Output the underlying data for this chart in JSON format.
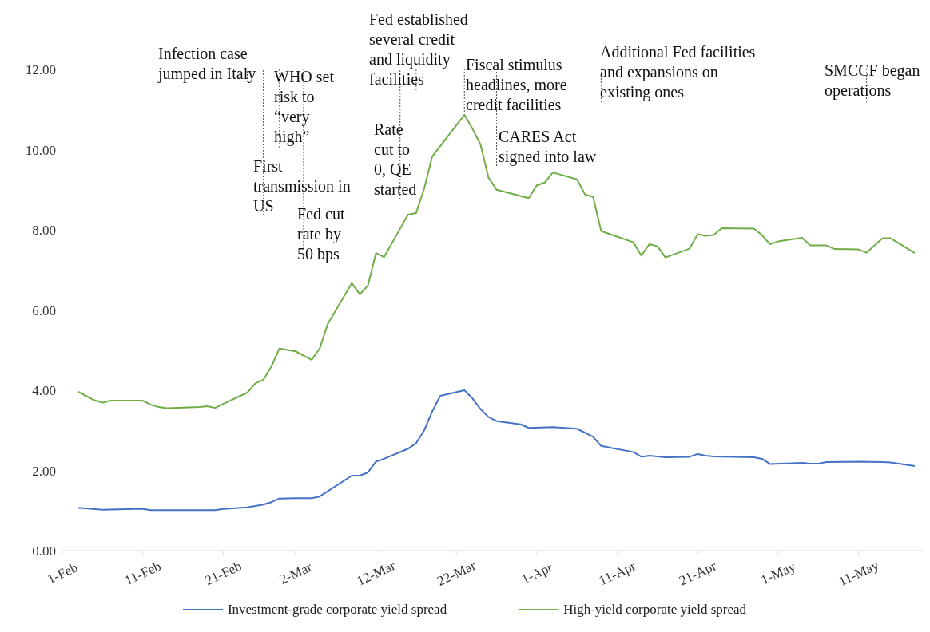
{
  "chart_data": {
    "type": "line",
    "xlim": [
      "--02-01",
      "--05-19"
    ],
    "xticks": [
      {
        "value": "--02-01",
        "label": "1-Feb"
      },
      {
        "value": "--02-11",
        "label": "11-Feb"
      },
      {
        "value": "--02-21",
        "label": "21-Feb"
      },
      {
        "value": "--03-02",
        "label": "2-Mar"
      },
      {
        "value": "--03-12",
        "label": "12-Mar"
      },
      {
        "value": "--03-22",
        "label": "22-Mar"
      },
      {
        "value": "--04-01",
        "label": "1-Apr"
      },
      {
        "value": "--04-11",
        "label": "11-Apr"
      },
      {
        "value": "--04-21",
        "label": "21-Apr"
      },
      {
        "value": "--05-01",
        "label": "1-May"
      },
      {
        "value": "--05-11",
        "label": "11-May"
      }
    ],
    "ylim": [
      0,
      12
    ],
    "yticks": [
      {
        "value": 0,
        "label": "0.00"
      },
      {
        "value": 2,
        "label": "2.00"
      },
      {
        "value": 4,
        "label": "4.00"
      },
      {
        "value": 6,
        "label": "6.00"
      },
      {
        "value": 8,
        "label": "8.00"
      },
      {
        "value": 10,
        "label": "10.00"
      },
      {
        "value": 12,
        "label": "12.00"
      }
    ],
    "grid": false,
    "legend": "bottom",
    "series": [
      {
        "name": "Investment-grade corporate yield spread",
        "color": "#4472c4",
        "x": [
          "--02-03",
          "--02-06",
          "--02-10",
          "--02-11",
          "--02-12",
          "--02-14",
          "--02-20",
          "--02-21",
          "--02-24",
          "--02-26",
          "--02-27",
          "--02-28",
          "--03-02",
          "--03-04",
          "--03-05",
          "--03-09",
          "--03-10",
          "--03-11",
          "--03-12",
          "--03-13",
          "--03-16",
          "--03-17",
          "--03-18",
          "--03-19",
          "--03-20",
          "--03-23",
          "--03-24",
          "--03-25",
          "--03-26",
          "--03-27",
          "--03-30",
          "--03-31",
          "--04-03",
          "--04-06",
          "--04-07",
          "--04-08",
          "--04-09",
          "--04-13",
          "--04-14",
          "--04-15",
          "--04-17",
          "--04-20",
          "--04-21",
          "--04-22",
          "--04-23",
          "--04-28",
          "--04-29",
          "--04-30",
          "--05-04",
          "--05-05",
          "--05-06",
          "--05-07",
          "--05-11",
          "--05-14",
          "--05-15",
          "--05-18"
        ],
        "values": [
          1.07,
          1.02,
          1.04,
          1.04,
          1.01,
          1.01,
          1.01,
          1.04,
          1.08,
          1.15,
          1.21,
          1.3,
          1.31,
          1.31,
          1.35,
          1.87,
          1.87,
          1.95,
          2.22,
          2.29,
          2.54,
          2.68,
          3.0,
          3.47,
          3.86,
          4.0,
          3.8,
          3.53,
          3.33,
          3.23,
          3.15,
          3.06,
          3.08,
          3.04,
          2.94,
          2.84,
          2.61,
          2.46,
          2.34,
          2.37,
          2.33,
          2.34,
          2.41,
          2.37,
          2.35,
          2.33,
          2.29,
          2.16,
          2.19,
          2.17,
          2.17,
          2.21,
          2.22,
          2.21,
          2.2,
          2.11
        ]
      },
      {
        "name": "High-yield corporate yield spread",
        "color": "#70ad47",
        "x": [
          "--02-03",
          "--02-05",
          "--02-06",
          "--02-07",
          "--02-11",
          "--02-12",
          "--02-13",
          "--02-14",
          "--02-18",
          "--02-19",
          "--02-20",
          "--02-21",
          "--02-24",
          "--02-25",
          "--02-26",
          "--02-27",
          "--02-28",
          "--03-02",
          "--03-04",
          "--03-05",
          "--03-06",
          "--03-09",
          "--03-10",
          "--03-11",
          "--03-12",
          "--03-13",
          "--03-16",
          "--03-17",
          "--03-18",
          "--03-19",
          "--03-23",
          "--03-24",
          "--03-25",
          "--03-26",
          "--03-27",
          "--03-31",
          "--04-01",
          "--04-02",
          "--04-03",
          "--04-06",
          "--04-07",
          "--04-08",
          "--04-09",
          "--04-13",
          "--04-14",
          "--04-15",
          "--04-16",
          "--04-17",
          "--04-20",
          "--04-21",
          "--04-22",
          "--04-23",
          "--04-24",
          "--04-28",
          "--04-29",
          "--04-30",
          "--05-01",
          "--05-04",
          "--05-05",
          "--05-07",
          "--05-08",
          "--05-11",
          "--05-12",
          "--05-14",
          "--05-15",
          "--05-18"
        ],
        "values": [
          3.96,
          3.75,
          3.69,
          3.74,
          3.74,
          3.64,
          3.58,
          3.55,
          3.58,
          3.6,
          3.56,
          3.66,
          3.94,
          4.17,
          4.26,
          4.59,
          5.04,
          4.97,
          4.76,
          5.04,
          5.65,
          6.67,
          6.39,
          6.61,
          7.42,
          7.32,
          8.38,
          8.42,
          9.03,
          9.83,
          10.87,
          10.52,
          10.13,
          9.3,
          9.0,
          8.79,
          9.11,
          9.18,
          9.43,
          9.26,
          8.88,
          8.82,
          7.97,
          7.69,
          7.36,
          7.64,
          7.59,
          7.31,
          7.53,
          7.89,
          7.85,
          7.87,
          8.04,
          8.03,
          7.87,
          7.64,
          7.71,
          7.8,
          7.61,
          7.61,
          7.52,
          7.51,
          7.43,
          7.79,
          7.79,
          7.42
        ]
      }
    ],
    "ref_lines": [
      {
        "axis": "x",
        "value": "--02-24",
        "label": "Infection case jumped in Italy",
        "line_style": "dotted"
      },
      {
        "axis": "x",
        "value": "--02-26",
        "label": "First transmission in US",
        "line_style": "dotted"
      },
      {
        "axis": "x",
        "value": "--02-28",
        "label": "WHO set risk to “very high”",
        "line_style": "dotted"
      },
      {
        "axis": "x",
        "value": "--03-03",
        "label": "Fed cut rate by 50 bps",
        "line_style": "dotted"
      },
      {
        "axis": "x",
        "value": "--03-15",
        "label": "Rate cut to 0, QE started",
        "line_style": "dotted"
      },
      {
        "axis": "x",
        "value": "--03-17",
        "label": "Fed established several credit and liquidity facilities",
        "line_style": "dotted"
      },
      {
        "axis": "x",
        "value": "--03-23",
        "label": "Fiscal stimulus headlines, more credit facilities",
        "line_style": "dotted"
      },
      {
        "axis": "x",
        "value": "--03-27",
        "label": "CARES Act signed into law",
        "line_style": "dotted"
      },
      {
        "axis": "x",
        "value": "--04-09",
        "label": "Additional Fed facilities and expansions on existing ones",
        "line_style": "dotted"
      },
      {
        "axis": "x",
        "value": "--05-12",
        "label": "SMCCF began operations",
        "line_style": "dotted"
      }
    ]
  }
}
